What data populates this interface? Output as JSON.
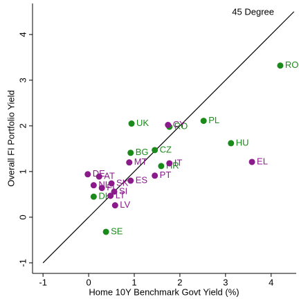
{
  "chart_data": {
    "type": "scatter",
    "x_label": "Home 10Y Benchmark Govt Yield (%)",
    "y_label": "Overall FI Portfolio Yield",
    "xlim": [
      -1.23,
      4.55
    ],
    "ylim": [
      -1.23,
      4.68
    ],
    "xticks": [
      -1,
      0,
      1,
      2,
      3,
      4
    ],
    "yticks": [
      -1,
      0,
      1,
      2,
      3,
      4
    ],
    "reference_line": {
      "label": "45 Degree",
      "x": [
        -1,
        4.5
      ],
      "y": [
        -1,
        4.5
      ],
      "color": "#000000"
    },
    "series": [
      {
        "color": "#1a8a1a",
        "labels": [
          "RO",
          "PL",
          "HU",
          "UK",
          "RO",
          "BG",
          "CZ",
          "HR",
          "SE",
          "DK"
        ],
        "x": [
          4.2,
          2.52,
          3.12,
          0.94,
          1.77,
          0.92,
          1.45,
          1.59,
          0.38,
          0.11
        ],
        "y": [
          3.32,
          2.11,
          1.62,
          2.05,
          1.98,
          1.41,
          1.47,
          1.12,
          -0.32,
          0.45
        ]
      },
      {
        "color": "#8b1a8b",
        "labels": [
          "EL",
          "CY",
          "IT",
          "PT",
          "MT",
          "ES",
          "DE",
          "AT",
          "SK",
          "NL",
          "FI",
          "SI",
          "LT",
          "LV"
        ],
        "x": [
          3.58,
          1.74,
          1.77,
          1.45,
          0.89,
          0.92,
          -0.02,
          0.23,
          0.5,
          0.11,
          0.29,
          0.56,
          0.48,
          0.58
        ],
        "y": [
          1.21,
          2.02,
          1.18,
          0.91,
          1.2,
          0.8,
          0.94,
          0.89,
          0.74,
          0.7,
          0.64,
          0.56,
          0.47,
          0.26
        ]
      }
    ]
  }
}
